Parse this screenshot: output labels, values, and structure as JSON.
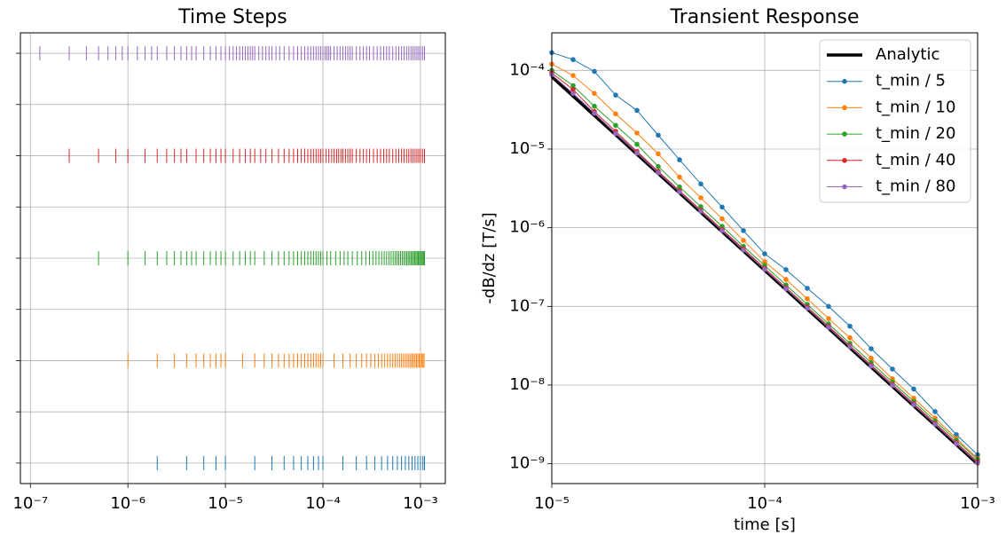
{
  "chart_data": [
    {
      "type": "eventplot",
      "title": "Time Steps",
      "xscale": "log",
      "grid": true,
      "xlim": [
        7.9e-08,
        0.0018
      ],
      "ylim": [
        -0.4,
        8.4
      ],
      "yticks": [
        0,
        1,
        2,
        3,
        4,
        5,
        6,
        7,
        8
      ],
      "xticks": [
        {
          "value": 1e-07,
          "label": "10⁻⁷"
        },
        {
          "value": 1e-06,
          "label": "10⁻⁶"
        },
        {
          "value": 1e-05,
          "label": "10⁻⁵"
        },
        {
          "value": 0.0001,
          "label": "10⁻⁴"
        },
        {
          "value": 0.001,
          "label": "10⁻³"
        }
      ],
      "series": [
        {
          "color": "#1f77b4",
          "values": [
            2e-06,
            4e-06,
            6e-06,
            8e-06,
            1e-05,
            2e-05,
            3e-05,
            4e-05,
            5e-05,
            6e-05,
            7e-05,
            8e-05,
            9e-05,
            0.0001,
            0.00016,
            0.00022,
            0.00028,
            0.00034,
            0.0004,
            0.00046,
            0.00052,
            0.00058,
            0.00064,
            0.0007,
            0.00076,
            0.00082,
            0.00088,
            0.00094,
            0.001,
            0.00106,
            0.0011
          ]
        },
        {
          "color": "#ff7f0e",
          "values": [
            1e-06,
            2e-06,
            3e-06,
            4e-06,
            5e-06,
            6e-06,
            7e-06,
            8e-06,
            9e-06,
            1e-05,
            1.5e-05,
            2e-05,
            2.5e-05,
            3e-05,
            3.5e-05,
            4e-05,
            4.5e-05,
            5e-05,
            5.5e-05,
            6e-05,
            6.5e-05,
            7e-05,
            7.5e-05,
            8e-05,
            8.5e-05,
            9e-05,
            9.5e-05,
            0.0001,
            0.00013,
            0.00016,
            0.00019,
            0.00022,
            0.00025,
            0.00028,
            0.00031,
            0.00034,
            0.00037,
            0.0004,
            0.00043,
            0.00046,
            0.00049,
            0.00052,
            0.00055,
            0.00058,
            0.00061,
            0.00064,
            0.00067,
            0.0007,
            0.00073,
            0.00076,
            0.00079,
            0.00082,
            0.00085,
            0.00088,
            0.00091,
            0.00094,
            0.00097,
            0.001,
            0.00103,
            0.00106,
            0.00109
          ]
        },
        {
          "color": "#2ca02c",
          "values": [
            5e-07,
            1e-06,
            1.5e-06,
            2e-06,
            2.5e-06,
            3e-06,
            3.5e-06,
            4e-06,
            4.5e-06,
            5e-06,
            6e-06,
            7e-06,
            8e-06,
            9e-06,
            1e-05,
            1.2e-05,
            1.4e-05,
            1.6e-05,
            1.8e-05,
            2e-05,
            2.5e-05,
            3e-05,
            3.5e-05,
            4e-05,
            4.5e-05,
            5e-05,
            5.5e-05,
            6e-05,
            6.5e-05,
            7e-05,
            7.5e-05,
            8e-05,
            8.5e-05,
            9e-05,
            9.5e-05,
            0.0001,
            0.00011,
            0.00012,
            0.000135,
            0.00015,
            0.000165,
            0.00018,
            0.0002,
            0.000225,
            0.00025,
            0.000275,
            0.0003,
            0.000325,
            0.00035,
            0.000375,
            0.0004,
            0.000425,
            0.00045,
            0.000475,
            0.0005,
            0.000525,
            0.00055,
            0.000575,
            0.0006,
            0.000625,
            0.00065,
            0.000675,
            0.0007,
            0.000725,
            0.00075,
            0.000775,
            0.0008,
            0.000825,
            0.00085,
            0.000875,
            0.0009,
            0.000925,
            0.00095,
            0.000975,
            0.001,
            0.001025,
            0.00105,
            0.001075,
            0.0011
          ]
        },
        {
          "color": "#d62728",
          "values": [
            2.5e-07,
            5e-07,
            7.5e-07,
            1e-06,
            1.5e-06,
            2e-06,
            2.5e-06,
            3e-06,
            3.5e-06,
            4e-06,
            5e-06,
            6e-06,
            7e-06,
            8e-06,
            9e-06,
            1e-05,
            1.2e-05,
            1.4e-05,
            1.6e-05,
            1.8e-05,
            2e-05,
            2.3e-05,
            2.6e-05,
            3e-05,
            3.5e-05,
            4e-05,
            4.5e-05,
            5e-05,
            5.5e-05,
            6e-05,
            6.5e-05,
            7e-05,
            7.5e-05,
            8e-05,
            8.5e-05,
            9e-05,
            9.5e-05,
            0.0001,
            0.000108,
            0.000115,
            0.000123,
            0.00013,
            0.000138,
            0.000145,
            0.000153,
            0.00016,
            0.00017,
            0.00018,
            0.00019,
            0.0002,
            0.00022,
            0.00024,
            0.00026,
            0.00028,
            0.0003,
            0.00033,
            0.00036,
            0.00039,
            0.00042,
            0.00045,
            0.00048,
            0.00052,
            0.00056,
            0.0006,
            0.00064,
            0.00068,
            0.00072,
            0.00076,
            0.0008,
            0.00084,
            0.00088,
            0.00092,
            0.00096,
            0.001,
            0.00105,
            0.0011
          ]
        },
        {
          "color": "#9467bd",
          "values": [
            1.25e-07,
            2.5e-07,
            3.75e-07,
            5e-07,
            6.25e-07,
            7.5e-07,
            8.75e-07,
            1e-06,
            1.25e-06,
            1.5e-06,
            1.75e-06,
            2e-06,
            2.5e-06,
            3e-06,
            3.5e-06,
            4e-06,
            4.5e-06,
            5e-06,
            6e-06,
            7e-06,
            8e-06,
            9e-06,
            1e-05,
            1.1e-05,
            1.2e-05,
            1.3e-05,
            1.4e-05,
            1.5e-05,
            1.6e-05,
            1.7e-05,
            1.8e-05,
            1.9e-05,
            2e-05,
            2.2e-05,
            2.4e-05,
            2.6e-05,
            2.8e-05,
            3e-05,
            3.3e-05,
            3.6e-05,
            4e-05,
            4.5e-05,
            5e-05,
            5.5e-05,
            6e-05,
            6.5e-05,
            7e-05,
            7.5e-05,
            8e-05,
            8.5e-05,
            9e-05,
            9.5e-05,
            0.0001,
            0.000105,
            0.00011,
            0.000115,
            0.00012,
            0.00013,
            0.00014,
            0.00015,
            0.00016,
            0.00017,
            0.00018,
            0.00019,
            0.0002,
            0.00022,
            0.00024,
            0.00026,
            0.00028,
            0.0003,
            0.00033,
            0.00036,
            0.00039,
            0.00042,
            0.00045,
            0.00048,
            0.00052,
            0.00056,
            0.0006,
            0.00064,
            0.00068,
            0.00072,
            0.00076,
            0.0008,
            0.00084,
            0.00088,
            0.00092,
            0.00096,
            0.001,
            0.00105,
            0.0011
          ]
        }
      ]
    },
    {
      "type": "line",
      "title": "Transient Response",
      "xlabel": "time [s]",
      "ylabel": "-dB/dz [T/s]",
      "xscale": "log",
      "yscale": "log",
      "grid": true,
      "legend": "upper right",
      "xlim": [
        1e-05,
        0.001
      ],
      "ylim": [
        5.6e-10,
        0.0003
      ],
      "xticks": [
        {
          "value": 1e-05,
          "label": "10⁻⁵"
        },
        {
          "value": 0.0001,
          "label": "10⁻⁴"
        },
        {
          "value": 0.001,
          "label": "10⁻³"
        }
      ],
      "yticks": [
        {
          "value": 1e-09,
          "label": "10⁻⁹"
        },
        {
          "value": 1e-08,
          "label": "10⁻⁸"
        },
        {
          "value": 1e-07,
          "label": "10⁻⁷"
        },
        {
          "value": 1e-06,
          "label": "10⁻⁶"
        },
        {
          "value": 1e-05,
          "label": "10⁻⁵"
        },
        {
          "value": 0.0001,
          "label": "10⁻⁴"
        }
      ],
      "x": [
        1e-05,
        1.259e-05,
        1.585e-05,
        1.995e-05,
        2.512e-05,
        3.162e-05,
        3.981e-05,
        5.012e-05,
        6.31e-05,
        7.943e-05,
        0.0001,
        0.0001259,
        0.0001585,
        0.0001995,
        0.0002512,
        0.0003162,
        0.0003981,
        0.0005012,
        0.000631,
        0.0007943,
        0.001
      ],
      "series": [
        {
          "name": "Analytic",
          "color": "#000000",
          "linewidth": 3.5,
          "marker": false,
          "values": [
            8.3e-05,
            4.71e-05,
            2.67e-05,
            1.52e-05,
            8.6e-06,
            4.88e-06,
            2.77e-06,
            1.57e-06,
            8.92e-07,
            5.06e-07,
            2.87e-07,
            1.63e-07,
            9.25e-08,
            5.25e-08,
            2.98e-08,
            1.69e-08,
            9.59e-09,
            5.44e-09,
            3.09e-09,
            1.75e-09,
            9.94e-10
          ]
        },
        {
          "name": "t_min / 5",
          "color": "#1f77b4",
          "linewidth": 1,
          "marker": true,
          "values": [
            0.000168,
            0.000137,
            9.7e-05,
            4.85e-05,
            3.1e-05,
            1.5e-05,
            7.3e-06,
            3.6e-06,
            1.83e-06,
            9.2e-07,
            4.66e-07,
            2.93e-07,
            1.7e-07,
            1e-07,
            5.6e-08,
            2.9e-08,
            1.6e-08,
            8.9e-09,
            4.6e-09,
            2.35e-09,
            1.3e-09
          ]
        },
        {
          "name": "t_min / 10",
          "color": "#ff7f0e",
          "linewidth": 1,
          "marker": true,
          "values": [
            0.00012,
            8.6e-05,
            5.1e-05,
            2.8e-05,
            1.6e-05,
            8.7e-06,
            4.4e-06,
            2.4e-06,
            1.3e-06,
            6.9e-07,
            3.7e-07,
            2.2e-07,
            1.25e-07,
            7e-08,
            4e-08,
            2.2e-08,
            1.2e-08,
            6.8e-09,
            3.8e-09,
            2.1e-09,
            1.17e-09
          ]
        },
        {
          "name": "t_min / 20",
          "color": "#2ca02c",
          "linewidth": 1,
          "marker": true,
          "values": [
            0.0001,
            6.4e-05,
            3.5e-05,
            2e-05,
            1.15e-05,
            6e-06,
            3.3e-06,
            1.85e-06,
            1.04e-06,
            5.8e-07,
            3.3e-07,
            1.87e-07,
            1.06e-07,
            6e-08,
            3.4e-08,
            1.93e-08,
            1.09e-08,
            6.2e-09,
            3.5e-09,
            1.99e-09,
            1.13e-09
          ]
        },
        {
          "name": "t_min / 40",
          "color": "#d62728",
          "linewidth": 1,
          "marker": true,
          "values": [
            9.3e-05,
            5.7e-05,
            3e-05,
            1.68e-05,
            9.3e-06,
            5.2e-06,
            2.95e-06,
            1.67e-06,
            9.5e-07,
            5.4e-07,
            3.05e-07,
            1.73e-07,
            9.8e-08,
            5.6e-08,
            3.17e-08,
            1.8e-08,
            1.02e-08,
            5.8e-09,
            3.28e-09,
            1.86e-09,
            1.06e-09
          ]
        },
        {
          "name": "t_min / 80",
          "color": "#9467bd",
          "linewidth": 1,
          "marker": true,
          "values": [
            8.8e-05,
            5.1e-05,
            2.85e-05,
            1.58e-05,
            8.9e-06,
            5e-06,
            2.85e-06,
            1.62e-06,
            9.2e-07,
            5.2e-07,
            2.96e-07,
            1.68e-07,
            9.5e-08,
            5.4e-08,
            3.07e-08,
            1.74e-08,
            9.9e-09,
            5.6e-09,
            3.18e-09,
            1.8e-09,
            1.02e-09
          ]
        }
      ]
    }
  ]
}
